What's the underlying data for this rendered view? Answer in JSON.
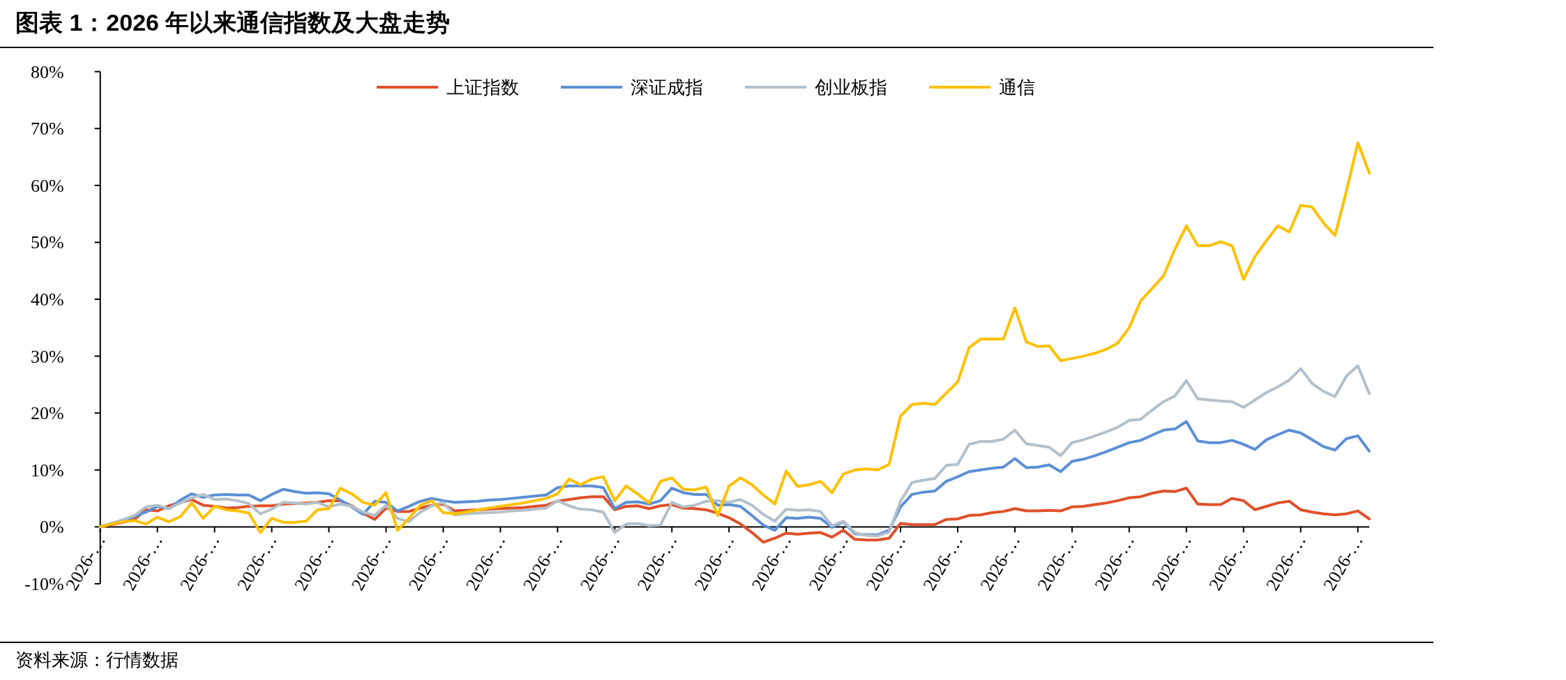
{
  "chart_data": {
    "type": "line",
    "title": "图表 1：2026 年以来通信指数及大盘走势",
    "annotations": [
      "资料来源：行情数据"
    ],
    "categories": [
      "2026-…",
      null,
      null,
      null,
      null,
      "2026-…",
      null,
      null,
      null,
      null,
      "2026-…",
      null,
      null,
      null,
      null,
      "2026-…",
      null,
      null,
      null,
      null,
      "2026-…",
      null,
      null,
      null,
      null,
      "2026-…",
      null,
      null,
      null,
      null,
      "2026-…",
      null,
      null,
      null,
      null,
      "2026-…",
      null,
      null,
      null,
      null,
      "2026-…",
      null,
      null,
      null,
      null,
      "2026-…",
      null,
      null,
      null,
      null,
      "2026-…",
      null,
      null,
      null,
      null,
      "2026-…",
      null,
      null,
      null,
      null,
      "2026-…",
      null,
      null,
      null,
      null,
      "2026-…",
      null,
      null,
      null,
      null,
      "2026-…",
      null,
      null,
      null,
      null,
      "2026-…",
      null,
      null,
      null,
      null,
      "2026-…",
      null,
      null,
      null,
      null,
      "2026-…",
      null,
      null,
      null,
      null,
      "2026-…",
      null,
      null,
      null,
      null,
      "2026-…",
      null,
      null,
      null,
      null,
      "2026-…",
      null,
      null,
      null,
      null,
      "2026-…",
      null,
      null,
      null,
      null,
      "2026-…",
      null
    ],
    "series": [
      {
        "name": "上证指数",
        "color": "#e0502a",
        "values": [
          0,
          0.4,
          0.8,
          1.3,
          3.0,
          2.8,
          3.7,
          4.3,
          4.8,
          3.8,
          3.6,
          3.3,
          3.4,
          3.6,
          3.7,
          3.7,
          4.0,
          4.1,
          4.2,
          4.3,
          4.6,
          4.6,
          3.7,
          2.4,
          1.3,
          3.3,
          2.7,
          2.7,
          3.3,
          3.8,
          4.0,
          2.8,
          2.9,
          3.0,
          3.1,
          3.2,
          3.3,
          3.4,
          3.6,
          3.8,
          4.5,
          4.8,
          5.1,
          5.3,
          5.3,
          3.0,
          3.6,
          3.7,
          3.2,
          3.7,
          3.9,
          3.3,
          3.2,
          3.0,
          2.4,
          1.6,
          0.5,
          -1.0,
          -2.7,
          -2.0,
          -1.1,
          -1.3,
          -1.1,
          -1.0,
          -1.8,
          -0.6,
          -2.2,
          -2.3,
          -2.3,
          -2.0,
          0.6,
          0.4,
          0.4,
          0.4,
          1.3,
          1.4,
          2.0,
          2.1,
          2.5,
          2.7,
          3.2,
          2.8,
          2.8,
          2.9,
          2.8,
          3.5,
          3.6,
          3.9,
          4.2,
          4.6,
          5.1,
          5.3,
          5.9,
          6.3,
          6.2,
          6.8,
          4.0,
          3.9,
          3.9,
          5.0,
          4.6,
          3.0,
          3.6,
          4.2,
          4.5,
          3.0,
          2.6,
          2.3,
          2.1,
          2.3,
          2.8,
          1.4
        ]
      },
      {
        "name": "深证成指",
        "color": "#5b8fd6",
        "values": [
          0,
          0.6,
          1.2,
          1.8,
          2.6,
          3.6,
          3.2,
          4.7,
          5.8,
          5.2,
          5.6,
          5.7,
          5.6,
          5.6,
          4.6,
          5.7,
          6.6,
          6.2,
          5.9,
          6.0,
          5.8,
          4.7,
          3.5,
          2.2,
          4.5,
          4.3,
          2.8,
          3.6,
          4.5,
          5.0,
          4.6,
          4.3,
          4.4,
          4.5,
          4.7,
          4.8,
          5.0,
          5.2,
          5.4,
          5.6,
          6.9,
          7.2,
          7.2,
          7.2,
          6.9,
          3.2,
          4.3,
          4.4,
          4.0,
          4.6,
          6.8,
          6.0,
          5.7,
          5.7,
          3.8,
          3.9,
          3.6,
          2.0,
          0.3,
          -0.6,
          1.6,
          1.5,
          1.7,
          1.5,
          -0.1,
          0.9,
          -1.2,
          -1.4,
          -1.4,
          -0.6,
          3.5,
          5.7,
          6.1,
          6.3,
          8.0,
          8.8,
          9.7,
          10.0,
          10.3,
          10.5,
          12.0,
          10.4,
          10.5,
          10.9,
          9.7,
          11.5,
          11.9,
          12.5,
          13.2,
          14.0,
          14.8,
          15.2,
          16.1,
          17.0,
          17.2,
          18.5,
          15.1,
          14.8,
          14.8,
          15.2,
          14.5,
          13.6,
          15.3,
          16.2,
          17.0,
          16.5,
          15.3,
          14.1,
          13.5,
          15.5,
          16.0,
          13.3
        ]
      },
      {
        "name": "创业板指",
        "color": "#b4c0c9",
        "values": [
          0,
          0.6,
          1.3,
          2.0,
          3.5,
          3.8,
          3.2,
          4.2,
          5.1,
          5.7,
          4.8,
          4.9,
          4.6,
          4.1,
          2.3,
          3.1,
          4.3,
          4.2,
          4.0,
          4.3,
          3.5,
          4.0,
          3.6,
          2.6,
          2.0,
          3.8,
          1.5,
          0.9,
          2.6,
          3.7,
          4.3,
          2.1,
          2.3,
          2.4,
          2.5,
          2.6,
          2.8,
          2.9,
          3.1,
          3.3,
          4.6,
          3.7,
          3.1,
          3.0,
          2.6,
          -1.0,
          0.5,
          0.6,
          0.2,
          0.3,
          4.3,
          3.5,
          3.8,
          4.5,
          4.6,
          4.3,
          4.8,
          3.8,
          2.2,
          1.0,
          3.1,
          2.9,
          3.0,
          2.7,
          0.2,
          1.0,
          -1.0,
          -1.5,
          -1.6,
          -0.9,
          4.5,
          7.8,
          8.2,
          8.5,
          10.8,
          11.0,
          14.5,
          15.0,
          15.0,
          15.4,
          17.0,
          14.6,
          14.3,
          14.0,
          12.5,
          14.8,
          15.3,
          16.0,
          16.7,
          17.5,
          18.7,
          18.9,
          20.5,
          22.0,
          23.0,
          25.7,
          22.5,
          22.3,
          22.1,
          22.0,
          21.0,
          22.3,
          23.6,
          24.6,
          25.8,
          27.8,
          25.2,
          23.8,
          22.9,
          26.5,
          28.3,
          23.4
        ]
      },
      {
        "name": "通信",
        "color": "#ffc000",
        "values": [
          0,
          0.5,
          0.9,
          1.1,
          0.5,
          1.7,
          0.9,
          1.8,
          4.2,
          1.5,
          3.6,
          3.0,
          2.8,
          2.4,
          -1.0,
          1.5,
          0.8,
          0.8,
          1.0,
          3.0,
          3.2,
          6.8,
          5.8,
          4.3,
          3.8,
          6.0,
          -0.6,
          1.5,
          3.8,
          4.6,
          2.5,
          2.3,
          2.6,
          3.0,
          3.3,
          3.6,
          3.9,
          4.2,
          4.6,
          5.0,
          5.8,
          8.4,
          7.4,
          8.4,
          8.8,
          4.6,
          7.2,
          5.8,
          4.2,
          8.0,
          8.6,
          6.6,
          6.5,
          7.0,
          2.0,
          7.2,
          8.6,
          7.4,
          5.6,
          4.0,
          9.8,
          7.1,
          7.4,
          8.0,
          6.0,
          9.3,
          10.0,
          10.2,
          10.0,
          11.0,
          19.5,
          21.5,
          21.7,
          21.5,
          23.5,
          25.5,
          31.5,
          33.0,
          33.0,
          33.0,
          38.5,
          32.5,
          31.7,
          31.8,
          29.2,
          29.6,
          30.0,
          30.5,
          31.2,
          32.3,
          35.0,
          39.7,
          41.9,
          44.1,
          48.8,
          52.9,
          49.4,
          49.4,
          50.1,
          49.4,
          43.5,
          47.5,
          50.3,
          52.9,
          51.8,
          56.5,
          56.2,
          53.4,
          51.2,
          59.0,
          67.5,
          62.2
        ]
      }
    ],
    "ylim": [
      -10,
      80
    ],
    "yticks": [
      {
        "value": -10,
        "label": "-10%"
      },
      {
        "value": 0,
        "label": "0%"
      },
      {
        "value": 10,
        "label": "10%"
      },
      {
        "value": 20,
        "label": "20%"
      },
      {
        "value": 30,
        "label": "30%"
      },
      {
        "value": 40,
        "label": "40%"
      },
      {
        "value": 50,
        "label": "50%"
      },
      {
        "value": 60,
        "label": "60%"
      },
      {
        "value": 70,
        "label": "70%"
      },
      {
        "value": 80,
        "label": "80%"
      }
    ],
    "legend": "top",
    "grid": false
  }
}
